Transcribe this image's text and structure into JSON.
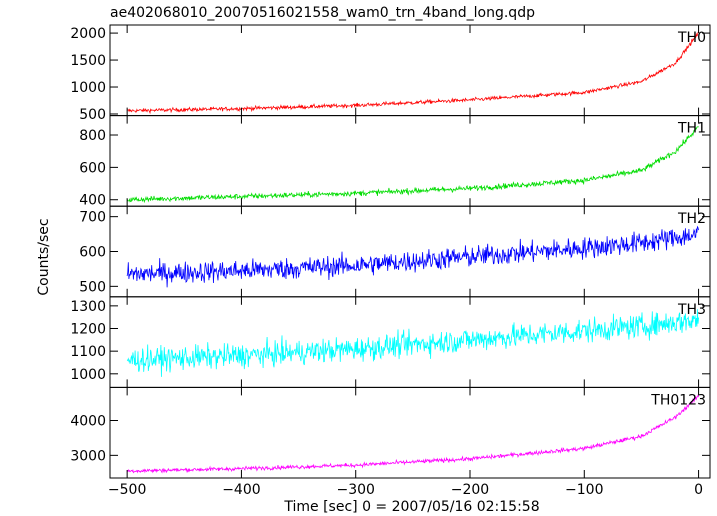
{
  "chart_data": {
    "type": "line",
    "title": "ae402068010_20070516021558_wam0_trn_4band_long.qdp",
    "xlabel": "Time [sec] 0 = 2007/05/16 02:15:58",
    "ylabel": "Counts/sec",
    "xlim": [
      -515,
      10
    ],
    "xticks": [
      -500,
      -400,
      -300,
      -200,
      -100,
      0
    ],
    "xtick_labels": [
      "−500",
      "−400",
      "−300",
      "−200",
      "−100",
      "0"
    ],
    "grid": false,
    "panels": [
      {
        "name": "TH0",
        "color": "#ff0000",
        "ylim": [
          470,
          2150
        ],
        "yticks": [
          500,
          1000,
          1500,
          2000
        ],
        "trend": [
          [
            -500,
            560
          ],
          [
            -400,
            600
          ],
          [
            -300,
            660
          ],
          [
            -200,
            760
          ],
          [
            -100,
            900
          ],
          [
            -50,
            1100
          ],
          [
            -20,
            1450
          ],
          [
            0,
            2000
          ]
        ],
        "noise": 25
      },
      {
        "name": "TH1",
        "color": "#00dd00",
        "ylim": [
          360,
          920
        ],
        "yticks": [
          400,
          600,
          800
        ],
        "trend": [
          [
            -500,
            400
          ],
          [
            -400,
            420
          ],
          [
            -300,
            440
          ],
          [
            -200,
            470
          ],
          [
            -100,
            520
          ],
          [
            -50,
            580
          ],
          [
            -20,
            700
          ],
          [
            0,
            850
          ]
        ],
        "noise": 12
      },
      {
        "name": "TH2",
        "color": "#0000ff",
        "ylim": [
          470,
          730
        ],
        "yticks": [
          500,
          600,
          700
        ],
        "trend": [
          [
            -500,
            535
          ],
          [
            -400,
            545
          ],
          [
            -300,
            560
          ],
          [
            -200,
            585
          ],
          [
            -100,
            610
          ],
          [
            -50,
            625
          ],
          [
            0,
            650
          ]
        ],
        "noise": 22
      },
      {
        "name": "TH3",
        "color": "#00ffff",
        "ylim": [
          940,
          1340
        ],
        "yticks": [
          1000,
          1100,
          1200,
          1300
        ],
        "trend": [
          [
            -500,
            1060
          ],
          [
            -400,
            1080
          ],
          [
            -300,
            1110
          ],
          [
            -200,
            1150
          ],
          [
            -100,
            1190
          ],
          [
            -50,
            1210
          ],
          [
            0,
            1240
          ]
        ],
        "noise": 38
      },
      {
        "name": "TH0123",
        "color": "#ff00ff",
        "ylim": [
          2350,
          4950
        ],
        "yticks": [
          3000,
          4000
        ],
        "trend": [
          [
            -500,
            2550
          ],
          [
            -400,
            2620
          ],
          [
            -300,
            2720
          ],
          [
            -200,
            2900
          ],
          [
            -100,
            3200
          ],
          [
            -50,
            3550
          ],
          [
            -20,
            4100
          ],
          [
            0,
            4700
          ]
        ],
        "noise": 40
      }
    ]
  }
}
